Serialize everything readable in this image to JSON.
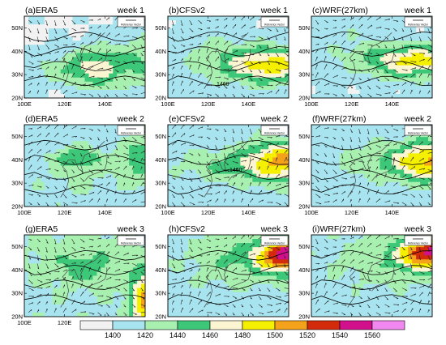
{
  "chart_data": {
    "type": "heatmap",
    "description_variable": "geopotential height with wind vectors",
    "x_ticks": [
      "100E",
      "120E",
      "140E"
    ],
    "y_ticks": [
      "20N",
      "30N",
      "40N",
      "50N"
    ],
    "lon_range": [
      100,
      160
    ],
    "lat_range": [
      20,
      55
    ],
    "ref_vector_label": "Reference Vector",
    "colorbar": {
      "levels": [
        "1400",
        "1420",
        "1440",
        "1460",
        "1480",
        "1500",
        "1520",
        "1540",
        "1560"
      ],
      "colors": [
        "#f2f2f2",
        "#a8e4ef",
        "#a8f0b0",
        "#3cc878",
        "#fbf5d2",
        "#f5f000",
        "#f5a21b",
        "#d22a0a",
        "#d2108c",
        "#f088f0"
      ]
    },
    "contour_labels": [
      "1460",
      "1460"
    ],
    "panels": [
      {
        "label": "(a)ERA5",
        "week": "week 1",
        "row": 0,
        "col": 0
      },
      {
        "label": "(b)CFSv2",
        "week": "week 1",
        "row": 0,
        "col": 1
      },
      {
        "label": "(c)WRF(27km)",
        "week": "week 1",
        "row": 0,
        "col": 2
      },
      {
        "label": "(d)ERA5",
        "week": "week 2",
        "row": 1,
        "col": 0
      },
      {
        "label": "(e)CFSv2",
        "week": "week 2",
        "row": 1,
        "col": 1
      },
      {
        "label": "(f)WRF(27km)",
        "week": "week 2",
        "row": 1,
        "col": 2
      },
      {
        "label": "(g)ERA5",
        "week": "week 3",
        "row": 2,
        "col": 0
      },
      {
        "label": "(h)CFSv2",
        "week": "week 3",
        "row": 2,
        "col": 1
      },
      {
        "label": "(i)WRF(27km)",
        "week": "week 3",
        "row": 2,
        "col": 2
      }
    ]
  }
}
